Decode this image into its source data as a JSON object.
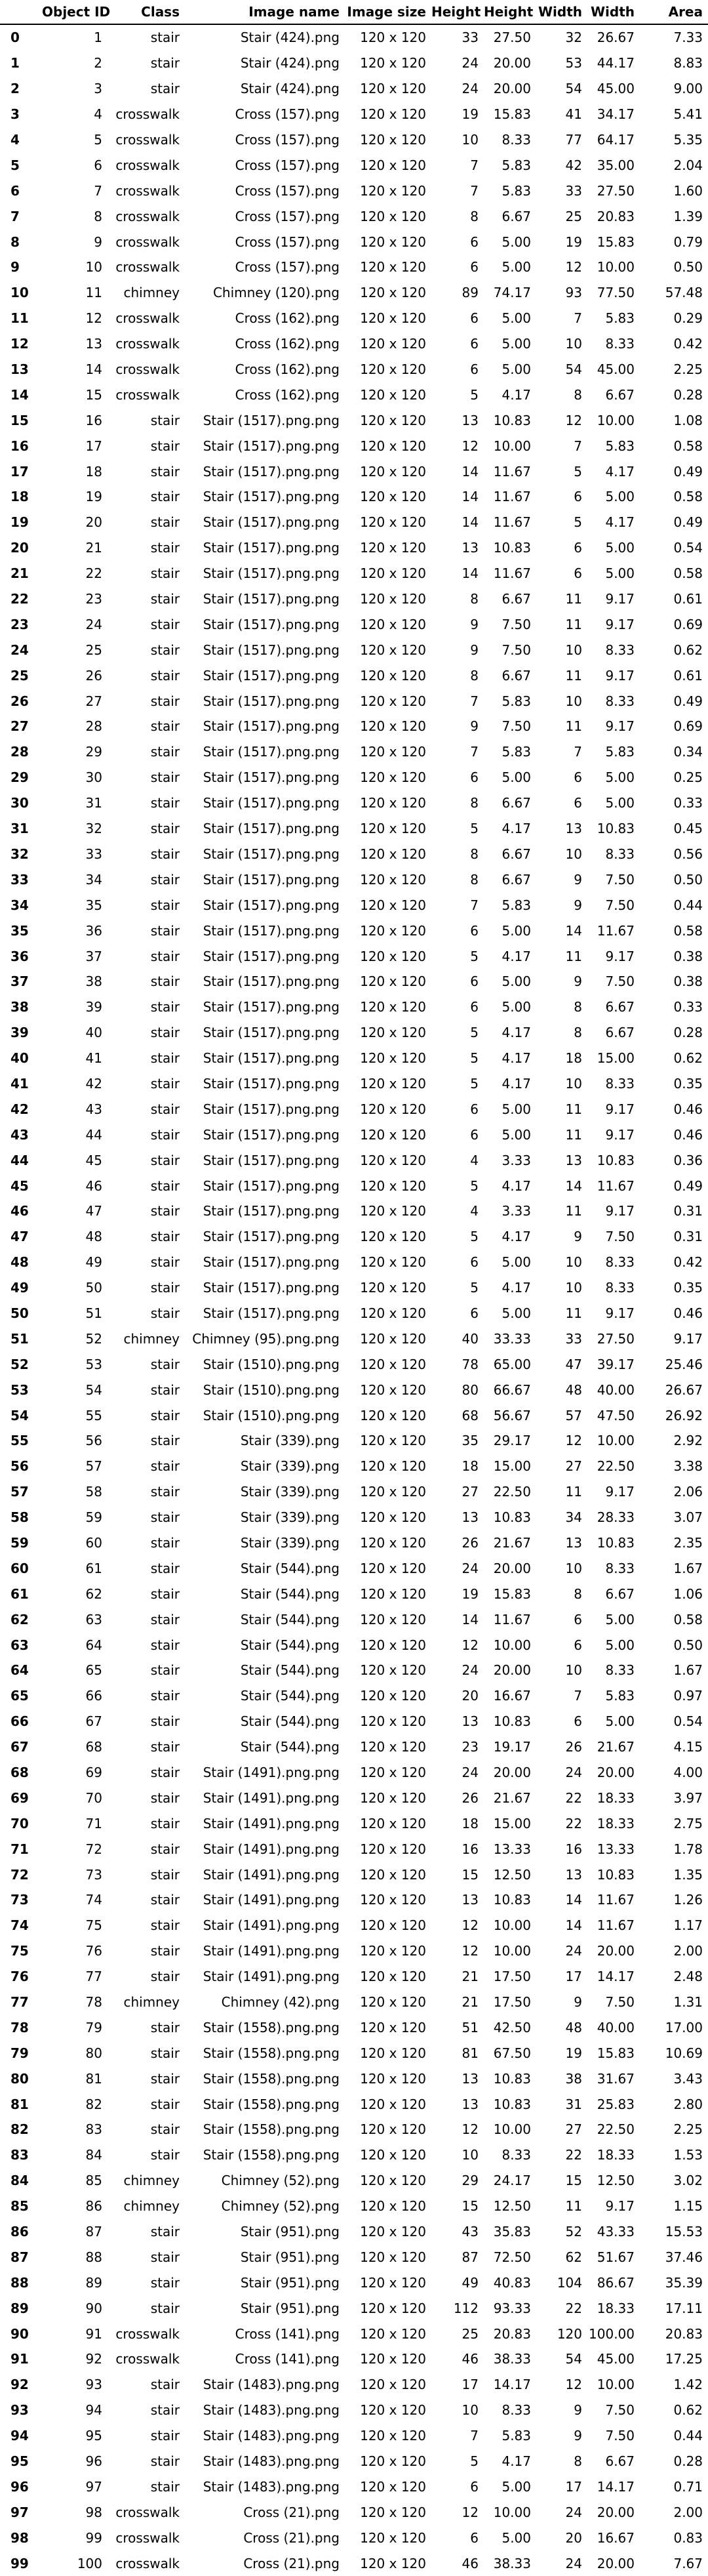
{
  "columns": [
    "",
    "Object ID",
    "Class",
    "Image name",
    "Image size",
    "Height",
    "Height",
    "Width",
    "Width",
    "Area"
  ],
  "rows": [
    [
      "0",
      "1",
      "stair",
      "Stair (424).png",
      "120 x 120",
      "33",
      "27.50",
      "32",
      "26.67",
      "7.33"
    ],
    [
      "1",
      "2",
      "stair",
      "Stair (424).png",
      "120 x 120",
      "24",
      "20.00",
      "53",
      "44.17",
      "8.83"
    ],
    [
      "2",
      "3",
      "stair",
      "Stair (424).png",
      "120 x 120",
      "24",
      "20.00",
      "54",
      "45.00",
      "9.00"
    ],
    [
      "3",
      "4",
      "crosswalk",
      "Cross (157).png",
      "120 x 120",
      "19",
      "15.83",
      "41",
      "34.17",
      "5.41"
    ],
    [
      "4",
      "5",
      "crosswalk",
      "Cross (157).png",
      "120 x 120",
      "10",
      "8.33",
      "77",
      "64.17",
      "5.35"
    ],
    [
      "5",
      "6",
      "crosswalk",
      "Cross (157).png",
      "120 x 120",
      "7",
      "5.83",
      "42",
      "35.00",
      "2.04"
    ],
    [
      "6",
      "7",
      "crosswalk",
      "Cross (157).png",
      "120 x 120",
      "7",
      "5.83",
      "33",
      "27.50",
      "1.60"
    ],
    [
      "7",
      "8",
      "crosswalk",
      "Cross (157).png",
      "120 x 120",
      "8",
      "6.67",
      "25",
      "20.83",
      "1.39"
    ],
    [
      "8",
      "9",
      "crosswalk",
      "Cross (157).png",
      "120 x 120",
      "6",
      "5.00",
      "19",
      "15.83",
      "0.79"
    ],
    [
      "9",
      "10",
      "crosswalk",
      "Cross (157).png",
      "120 x 120",
      "6",
      "5.00",
      "12",
      "10.00",
      "0.50"
    ],
    [
      "10",
      "11",
      "chimney",
      "Chimney (120).png",
      "120 x 120",
      "89",
      "74.17",
      "93",
      "77.50",
      "57.48"
    ],
    [
      "11",
      "12",
      "crosswalk",
      "Cross (162).png",
      "120 x 120",
      "6",
      "5.00",
      "7",
      "5.83",
      "0.29"
    ],
    [
      "12",
      "13",
      "crosswalk",
      "Cross (162).png",
      "120 x 120",
      "6",
      "5.00",
      "10",
      "8.33",
      "0.42"
    ],
    [
      "13",
      "14",
      "crosswalk",
      "Cross (162).png",
      "120 x 120",
      "6",
      "5.00",
      "54",
      "45.00",
      "2.25"
    ],
    [
      "14",
      "15",
      "crosswalk",
      "Cross (162).png",
      "120 x 120",
      "5",
      "4.17",
      "8",
      "6.67",
      "0.28"
    ],
    [
      "15",
      "16",
      "stair",
      "Stair (1517).png.png",
      "120 x 120",
      "13",
      "10.83",
      "12",
      "10.00",
      "1.08"
    ],
    [
      "16",
      "17",
      "stair",
      "Stair (1517).png.png",
      "120 x 120",
      "12",
      "10.00",
      "7",
      "5.83",
      "0.58"
    ],
    [
      "17",
      "18",
      "stair",
      "Stair (1517).png.png",
      "120 x 120",
      "14",
      "11.67",
      "5",
      "4.17",
      "0.49"
    ],
    [
      "18",
      "19",
      "stair",
      "Stair (1517).png.png",
      "120 x 120",
      "14",
      "11.67",
      "6",
      "5.00",
      "0.58"
    ],
    [
      "19",
      "20",
      "stair",
      "Stair (1517).png.png",
      "120 x 120",
      "14",
      "11.67",
      "5",
      "4.17",
      "0.49"
    ],
    [
      "20",
      "21",
      "stair",
      "Stair (1517).png.png",
      "120 x 120",
      "13",
      "10.83",
      "6",
      "5.00",
      "0.54"
    ],
    [
      "21",
      "22",
      "stair",
      "Stair (1517).png.png",
      "120 x 120",
      "14",
      "11.67",
      "6",
      "5.00",
      "0.58"
    ],
    [
      "22",
      "23",
      "stair",
      "Stair (1517).png.png",
      "120 x 120",
      "8",
      "6.67",
      "11",
      "9.17",
      "0.61"
    ],
    [
      "23",
      "24",
      "stair",
      "Stair (1517).png.png",
      "120 x 120",
      "9",
      "7.50",
      "11",
      "9.17",
      "0.69"
    ],
    [
      "24",
      "25",
      "stair",
      "Stair (1517).png.png",
      "120 x 120",
      "9",
      "7.50",
      "10",
      "8.33",
      "0.62"
    ],
    [
      "25",
      "26",
      "stair",
      "Stair (1517).png.png",
      "120 x 120",
      "8",
      "6.67",
      "11",
      "9.17",
      "0.61"
    ],
    [
      "26",
      "27",
      "stair",
      "Stair (1517).png.png",
      "120 x 120",
      "7",
      "5.83",
      "10",
      "8.33",
      "0.49"
    ],
    [
      "27",
      "28",
      "stair",
      "Stair (1517).png.png",
      "120 x 120",
      "9",
      "7.50",
      "11",
      "9.17",
      "0.69"
    ],
    [
      "28",
      "29",
      "stair",
      "Stair (1517).png.png",
      "120 x 120",
      "7",
      "5.83",
      "7",
      "5.83",
      "0.34"
    ],
    [
      "29",
      "30",
      "stair",
      "Stair (1517).png.png",
      "120 x 120",
      "6",
      "5.00",
      "6",
      "5.00",
      "0.25"
    ],
    [
      "30",
      "31",
      "stair",
      "Stair (1517).png.png",
      "120 x 120",
      "8",
      "6.67",
      "6",
      "5.00",
      "0.33"
    ],
    [
      "31",
      "32",
      "stair",
      "Stair (1517).png.png",
      "120 x 120",
      "5",
      "4.17",
      "13",
      "10.83",
      "0.45"
    ],
    [
      "32",
      "33",
      "stair",
      "Stair (1517).png.png",
      "120 x 120",
      "8",
      "6.67",
      "10",
      "8.33",
      "0.56"
    ],
    [
      "33",
      "34",
      "stair",
      "Stair (1517).png.png",
      "120 x 120",
      "8",
      "6.67",
      "9",
      "7.50",
      "0.50"
    ],
    [
      "34",
      "35",
      "stair",
      "Stair (1517).png.png",
      "120 x 120",
      "7",
      "5.83",
      "9",
      "7.50",
      "0.44"
    ],
    [
      "35",
      "36",
      "stair",
      "Stair (1517).png.png",
      "120 x 120",
      "6",
      "5.00",
      "14",
      "11.67",
      "0.58"
    ],
    [
      "36",
      "37",
      "stair",
      "Stair (1517).png.png",
      "120 x 120",
      "5",
      "4.17",
      "11",
      "9.17",
      "0.38"
    ],
    [
      "37",
      "38",
      "stair",
      "Stair (1517).png.png",
      "120 x 120",
      "6",
      "5.00",
      "9",
      "7.50",
      "0.38"
    ],
    [
      "38",
      "39",
      "stair",
      "Stair (1517).png.png",
      "120 x 120",
      "6",
      "5.00",
      "8",
      "6.67",
      "0.33"
    ],
    [
      "39",
      "40",
      "stair",
      "Stair (1517).png.png",
      "120 x 120",
      "5",
      "4.17",
      "8",
      "6.67",
      "0.28"
    ],
    [
      "40",
      "41",
      "stair",
      "Stair (1517).png.png",
      "120 x 120",
      "5",
      "4.17",
      "18",
      "15.00",
      "0.62"
    ],
    [
      "41",
      "42",
      "stair",
      "Stair (1517).png.png",
      "120 x 120",
      "5",
      "4.17",
      "10",
      "8.33",
      "0.35"
    ],
    [
      "42",
      "43",
      "stair",
      "Stair (1517).png.png",
      "120 x 120",
      "6",
      "5.00",
      "11",
      "9.17",
      "0.46"
    ],
    [
      "43",
      "44",
      "stair",
      "Stair (1517).png.png",
      "120 x 120",
      "6",
      "5.00",
      "11",
      "9.17",
      "0.46"
    ],
    [
      "44",
      "45",
      "stair",
      "Stair (1517).png.png",
      "120 x 120",
      "4",
      "3.33",
      "13",
      "10.83",
      "0.36"
    ],
    [
      "45",
      "46",
      "stair",
      "Stair (1517).png.png",
      "120 x 120",
      "5",
      "4.17",
      "14",
      "11.67",
      "0.49"
    ],
    [
      "46",
      "47",
      "stair",
      "Stair (1517).png.png",
      "120 x 120",
      "4",
      "3.33",
      "11",
      "9.17",
      "0.31"
    ],
    [
      "47",
      "48",
      "stair",
      "Stair (1517).png.png",
      "120 x 120",
      "5",
      "4.17",
      "9",
      "7.50",
      "0.31"
    ],
    [
      "48",
      "49",
      "stair",
      "Stair (1517).png.png",
      "120 x 120",
      "6",
      "5.00",
      "10",
      "8.33",
      "0.42"
    ],
    [
      "49",
      "50",
      "stair",
      "Stair (1517).png.png",
      "120 x 120",
      "5",
      "4.17",
      "10",
      "8.33",
      "0.35"
    ],
    [
      "50",
      "51",
      "stair",
      "Stair (1517).png.png",
      "120 x 120",
      "6",
      "5.00",
      "11",
      "9.17",
      "0.46"
    ],
    [
      "51",
      "52",
      "chimney",
      "Chimney (95).png.png",
      "120 x 120",
      "40",
      "33.33",
      "33",
      "27.50",
      "9.17"
    ],
    [
      "52",
      "53",
      "stair",
      "Stair (1510).png.png",
      "120 x 120",
      "78",
      "65.00",
      "47",
      "39.17",
      "25.46"
    ],
    [
      "53",
      "54",
      "stair",
      "Stair (1510).png.png",
      "120 x 120",
      "80",
      "66.67",
      "48",
      "40.00",
      "26.67"
    ],
    [
      "54",
      "55",
      "stair",
      "Stair (1510).png.png",
      "120 x 120",
      "68",
      "56.67",
      "57",
      "47.50",
      "26.92"
    ],
    [
      "55",
      "56",
      "stair",
      "Stair (339).png",
      "120 x 120",
      "35",
      "29.17",
      "12",
      "10.00",
      "2.92"
    ],
    [
      "56",
      "57",
      "stair",
      "Stair (339).png",
      "120 x 120",
      "18",
      "15.00",
      "27",
      "22.50",
      "3.38"
    ],
    [
      "57",
      "58",
      "stair",
      "Stair (339).png",
      "120 x 120",
      "27",
      "22.50",
      "11",
      "9.17",
      "2.06"
    ],
    [
      "58",
      "59",
      "stair",
      "Stair (339).png",
      "120 x 120",
      "13",
      "10.83",
      "34",
      "28.33",
      "3.07"
    ],
    [
      "59",
      "60",
      "stair",
      "Stair (339).png",
      "120 x 120",
      "26",
      "21.67",
      "13",
      "10.83",
      "2.35"
    ],
    [
      "60",
      "61",
      "stair",
      "Stair (544).png",
      "120 x 120",
      "24",
      "20.00",
      "10",
      "8.33",
      "1.67"
    ],
    [
      "61",
      "62",
      "stair",
      "Stair (544).png",
      "120 x 120",
      "19",
      "15.83",
      "8",
      "6.67",
      "1.06"
    ],
    [
      "62",
      "63",
      "stair",
      "Stair (544).png",
      "120 x 120",
      "14",
      "11.67",
      "6",
      "5.00",
      "0.58"
    ],
    [
      "63",
      "64",
      "stair",
      "Stair (544).png",
      "120 x 120",
      "12",
      "10.00",
      "6",
      "5.00",
      "0.50"
    ],
    [
      "64",
      "65",
      "stair",
      "Stair (544).png",
      "120 x 120",
      "24",
      "20.00",
      "10",
      "8.33",
      "1.67"
    ],
    [
      "65",
      "66",
      "stair",
      "Stair (544).png",
      "120 x 120",
      "20",
      "16.67",
      "7",
      "5.83",
      "0.97"
    ],
    [
      "66",
      "67",
      "stair",
      "Stair (544).png",
      "120 x 120",
      "13",
      "10.83",
      "6",
      "5.00",
      "0.54"
    ],
    [
      "67",
      "68",
      "stair",
      "Stair (544).png",
      "120 x 120",
      "23",
      "19.17",
      "26",
      "21.67",
      "4.15"
    ],
    [
      "68",
      "69",
      "stair",
      "Stair (1491).png.png",
      "120 x 120",
      "24",
      "20.00",
      "24",
      "20.00",
      "4.00"
    ],
    [
      "69",
      "70",
      "stair",
      "Stair (1491).png.png",
      "120 x 120",
      "26",
      "21.67",
      "22",
      "18.33",
      "3.97"
    ],
    [
      "70",
      "71",
      "stair",
      "Stair (1491).png.png",
      "120 x 120",
      "18",
      "15.00",
      "22",
      "18.33",
      "2.75"
    ],
    [
      "71",
      "72",
      "stair",
      "Stair (1491).png.png",
      "120 x 120",
      "16",
      "13.33",
      "16",
      "13.33",
      "1.78"
    ],
    [
      "72",
      "73",
      "stair",
      "Stair (1491).png.png",
      "120 x 120",
      "15",
      "12.50",
      "13",
      "10.83",
      "1.35"
    ],
    [
      "73",
      "74",
      "stair",
      "Stair (1491).png.png",
      "120 x 120",
      "13",
      "10.83",
      "14",
      "11.67",
      "1.26"
    ],
    [
      "74",
      "75",
      "stair",
      "Stair (1491).png.png",
      "120 x 120",
      "12",
      "10.00",
      "14",
      "11.67",
      "1.17"
    ],
    [
      "75",
      "76",
      "stair",
      "Stair (1491).png.png",
      "120 x 120",
      "12",
      "10.00",
      "24",
      "20.00",
      "2.00"
    ],
    [
      "76",
      "77",
      "stair",
      "Stair (1491).png.png",
      "120 x 120",
      "21",
      "17.50",
      "17",
      "14.17",
      "2.48"
    ],
    [
      "77",
      "78",
      "chimney",
      "Chimney (42).png",
      "120 x 120",
      "21",
      "17.50",
      "9",
      "7.50",
      "1.31"
    ],
    [
      "78",
      "79",
      "stair",
      "Stair (1558).png.png",
      "120 x 120",
      "51",
      "42.50",
      "48",
      "40.00",
      "17.00"
    ],
    [
      "79",
      "80",
      "stair",
      "Stair (1558).png.png",
      "120 x 120",
      "81",
      "67.50",
      "19",
      "15.83",
      "10.69"
    ],
    [
      "80",
      "81",
      "stair",
      "Stair (1558).png.png",
      "120 x 120",
      "13",
      "10.83",
      "38",
      "31.67",
      "3.43"
    ],
    [
      "81",
      "82",
      "stair",
      "Stair (1558).png.png",
      "120 x 120",
      "13",
      "10.83",
      "31",
      "25.83",
      "2.80"
    ],
    [
      "82",
      "83",
      "stair",
      "Stair (1558).png.png",
      "120 x 120",
      "12",
      "10.00",
      "27",
      "22.50",
      "2.25"
    ],
    [
      "83",
      "84",
      "stair",
      "Stair (1558).png.png",
      "120 x 120",
      "10",
      "8.33",
      "22",
      "18.33",
      "1.53"
    ],
    [
      "84",
      "85",
      "chimney",
      "Chimney (52).png",
      "120 x 120",
      "29",
      "24.17",
      "15",
      "12.50",
      "3.02"
    ],
    [
      "85",
      "86",
      "chimney",
      "Chimney (52).png",
      "120 x 120",
      "15",
      "12.50",
      "11",
      "9.17",
      "1.15"
    ],
    [
      "86",
      "87",
      "stair",
      "Stair (951).png",
      "120 x 120",
      "43",
      "35.83",
      "52",
      "43.33",
      "15.53"
    ],
    [
      "87",
      "88",
      "stair",
      "Stair (951).png",
      "120 x 120",
      "87",
      "72.50",
      "62",
      "51.67",
      "37.46"
    ],
    [
      "88",
      "89",
      "stair",
      "Stair (951).png",
      "120 x 120",
      "49",
      "40.83",
      "104",
      "86.67",
      "35.39"
    ],
    [
      "89",
      "90",
      "stair",
      "Stair (951).png",
      "120 x 120",
      "112",
      "93.33",
      "22",
      "18.33",
      "17.11"
    ],
    [
      "90",
      "91",
      "crosswalk",
      "Cross (141).png",
      "120 x 120",
      "25",
      "20.83",
      "120",
      "100.00",
      "20.83"
    ],
    [
      "91",
      "92",
      "crosswalk",
      "Cross (141).png",
      "120 x 120",
      "46",
      "38.33",
      "54",
      "45.00",
      "17.25"
    ],
    [
      "92",
      "93",
      "stair",
      "Stair (1483).png.png",
      "120 x 120",
      "17",
      "14.17",
      "12",
      "10.00",
      "1.42"
    ],
    [
      "93",
      "94",
      "stair",
      "Stair (1483).png.png",
      "120 x 120",
      "10",
      "8.33",
      "9",
      "7.50",
      "0.62"
    ],
    [
      "94",
      "95",
      "stair",
      "Stair (1483).png.png",
      "120 x 120",
      "7",
      "5.83",
      "9",
      "7.50",
      "0.44"
    ],
    [
      "95",
      "96",
      "stair",
      "Stair (1483).png.png",
      "120 x 120",
      "5",
      "4.17",
      "8",
      "6.67",
      "0.28"
    ],
    [
      "96",
      "97",
      "stair",
      "Stair (1483).png.png",
      "120 x 120",
      "6",
      "5.00",
      "17",
      "14.17",
      "0.71"
    ],
    [
      "97",
      "98",
      "crosswalk",
      "Cross (21).png",
      "120 x 120",
      "12",
      "10.00",
      "24",
      "20.00",
      "2.00"
    ],
    [
      "98",
      "99",
      "crosswalk",
      "Cross (21).png",
      "120 x 120",
      "6",
      "5.00",
      "20",
      "16.67",
      "0.83"
    ],
    [
      "99",
      "100",
      "crosswalk",
      "Cross (21).png",
      "120 x 120",
      "46",
      "38.33",
      "24",
      "20.00",
      "7.67"
    ]
  ]
}
